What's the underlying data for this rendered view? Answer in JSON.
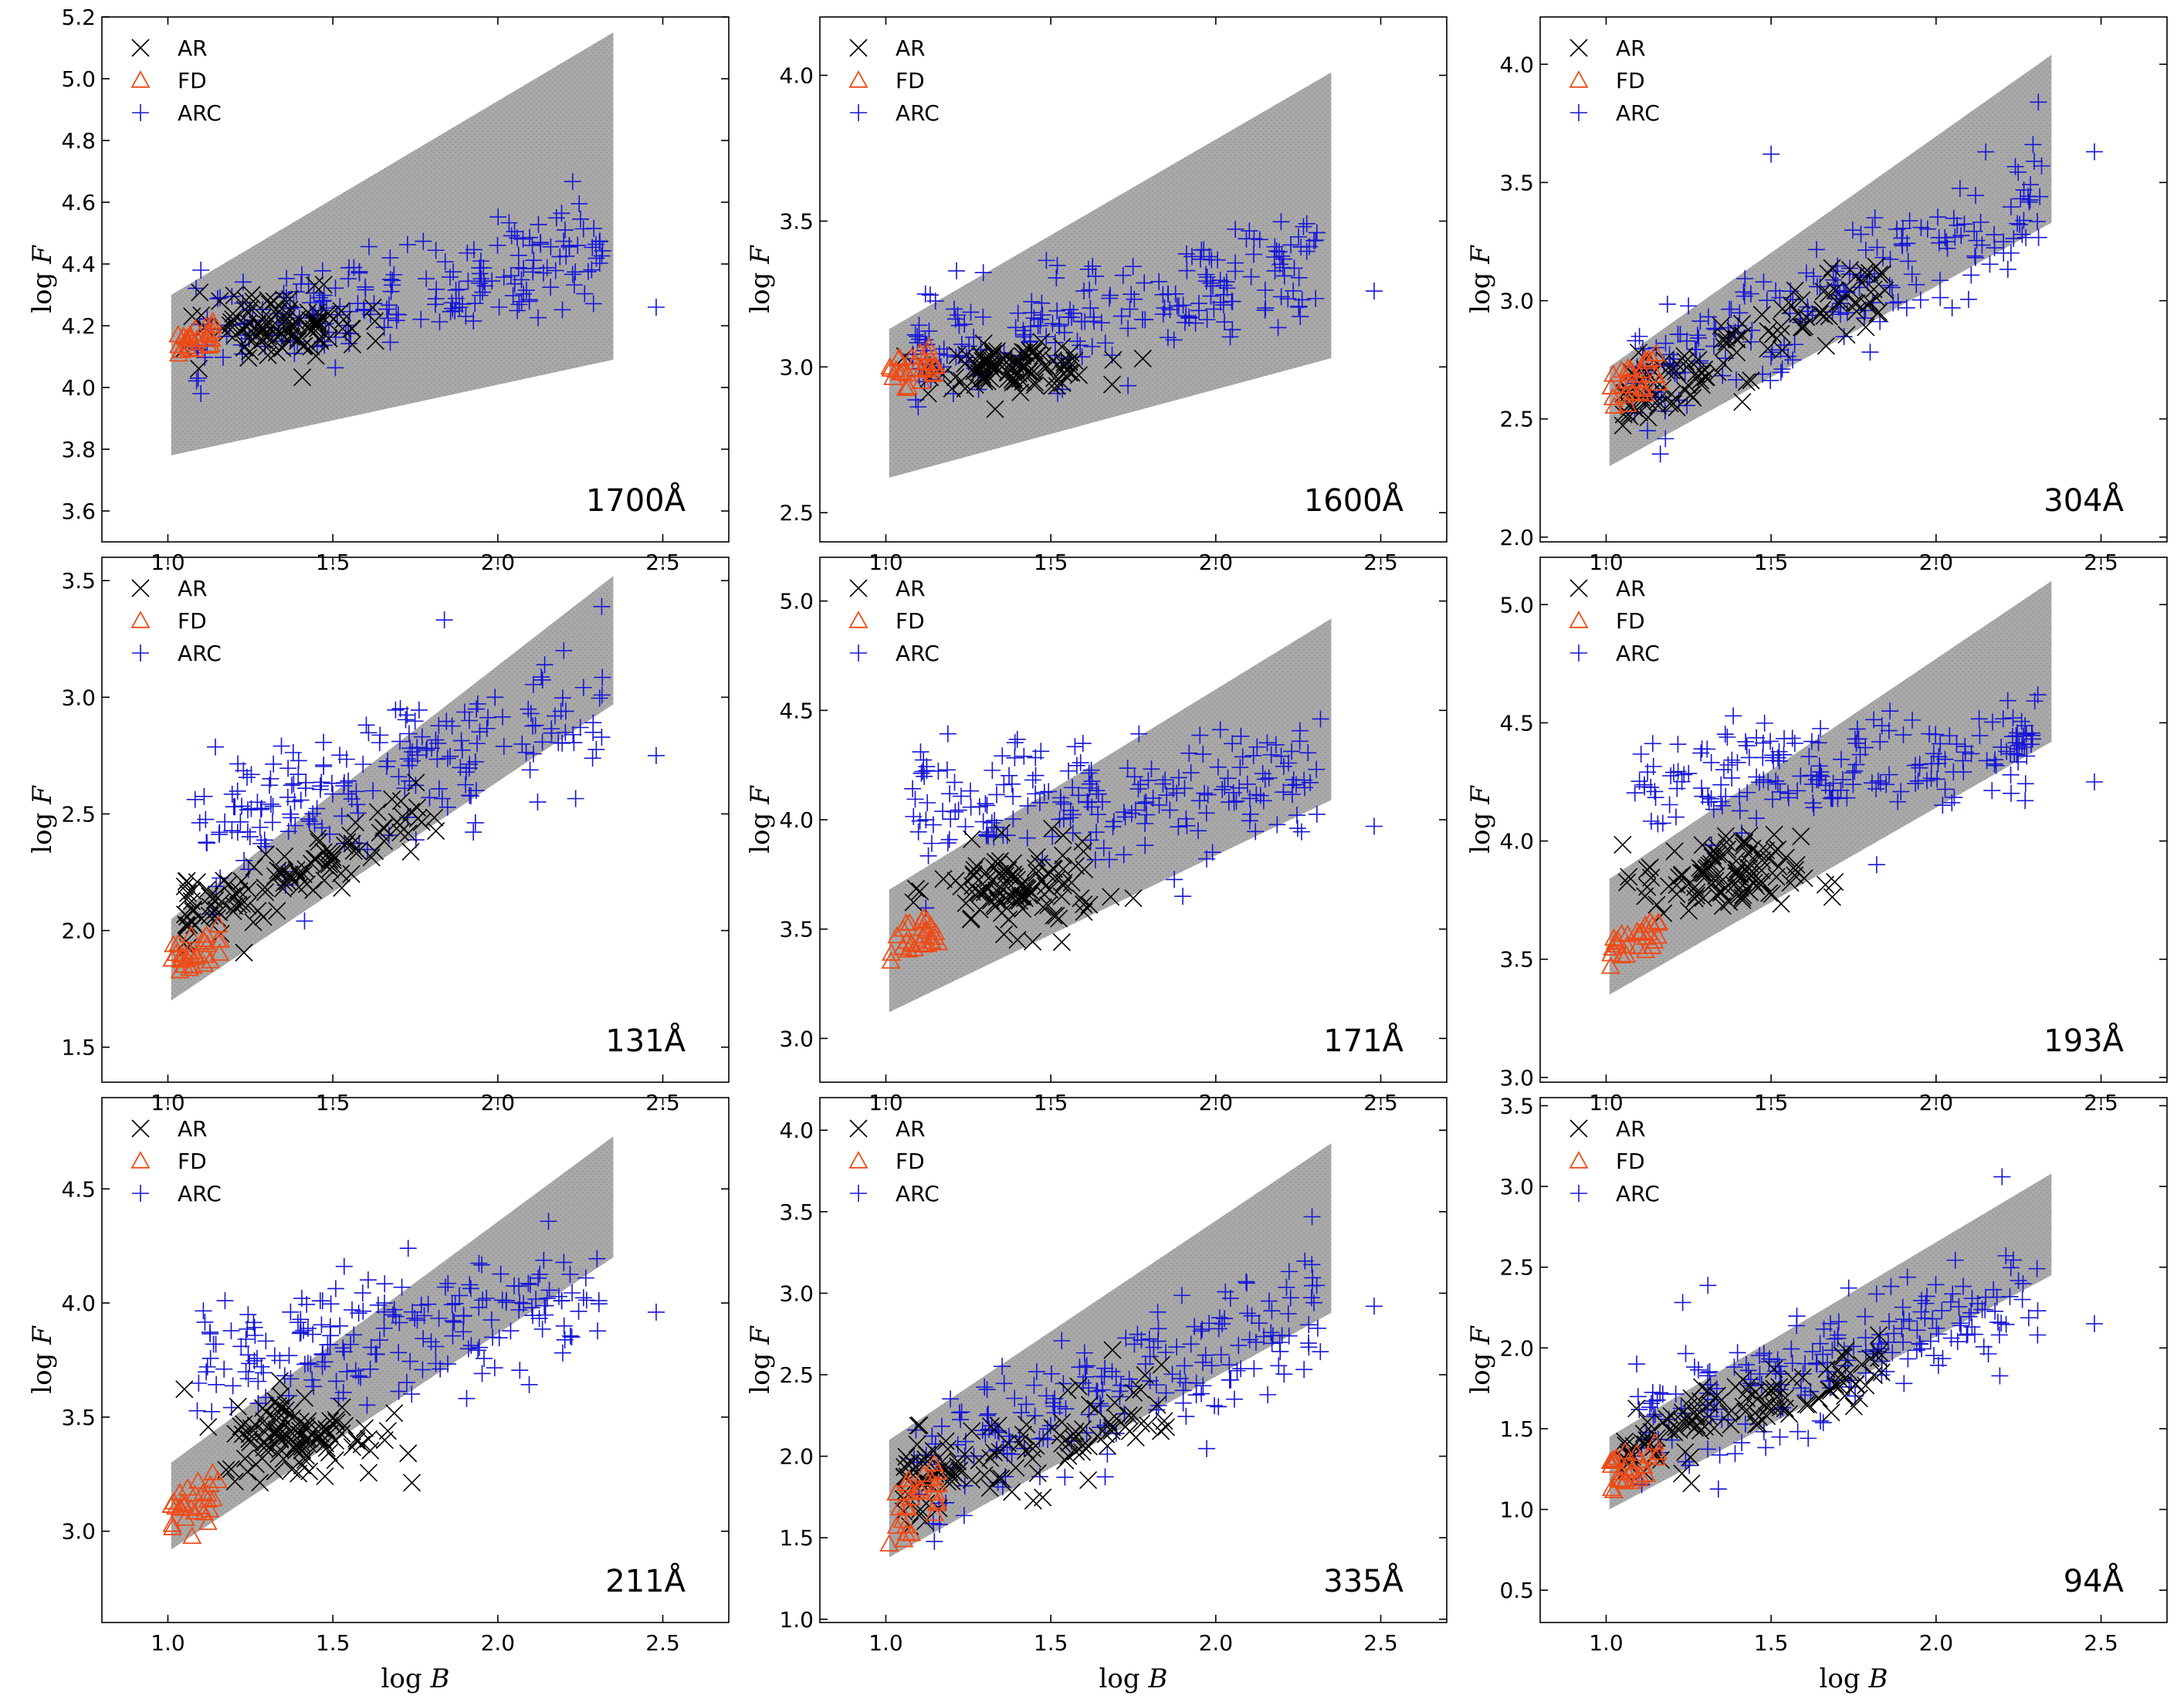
{
  "figure": {
    "axis_label_x_prefix": "log ",
    "axis_label_x_var": "B",
    "axis_label_y_prefix": "log ",
    "axis_label_y_var": "F"
  },
  "legend": [
    {
      "key": "AR",
      "label": "AR",
      "marker": "x",
      "color": "#000000"
    },
    {
      "key": "FD",
      "label": "FD",
      "marker": "triangle",
      "color": "#ee4a16"
    },
    {
      "key": "ARC",
      "label": "ARC",
      "marker": "plus",
      "color": "#1515d8"
    }
  ],
  "colors": {
    "band": "#a9a9a9",
    "axes": "#000000"
  },
  "chart_data": [
    {
      "type": "scatter",
      "title": "1700Å",
      "xlabel": "log B",
      "ylabel": "log F",
      "xlim": [
        0.8,
        2.7
      ],
      "ylim": [
        3.5,
        5.2
      ],
      "xticks": [
        "1.0",
        "1.5",
        "2.0",
        "2.5"
      ],
      "yticks": [
        "3.6",
        "3.8",
        "4.0",
        "4.2",
        "4.4",
        "4.6",
        "4.8",
        "5.0",
        "5.2"
      ],
      "band": {
        "x0": 1.01,
        "x1": 2.35,
        "lo": [
          3.78,
          4.09
        ],
        "hi": [
          4.3,
          5.15
        ]
      },
      "series": {
        "AR": {
          "center": [
            1.35,
            4.2
          ],
          "xrange": [
            1.05,
            1.85
          ],
          "spread": 0.04,
          "n": 110
        },
        "FD": {
          "xrange": [
            1.01,
            1.14
          ],
          "yrange": [
            4.09,
            4.22
          ],
          "n": 28
        },
        "ARC": {
          "slope": 0.25,
          "intercept": 3.88,
          "xrange": [
            1.08,
            2.32
          ],
          "spread": 0.08,
          "n": 210,
          "extra": [
            [
              2.48,
              4.26
            ],
            [
              1.1,
              4.38
            ],
            [
              1.1,
              3.98
            ]
          ]
        }
      }
    },
    {
      "type": "scatter",
      "title": "1600Å",
      "xlabel": "log B",
      "ylabel": "log F",
      "xlim": [
        0.8,
        2.7
      ],
      "ylim": [
        2.4,
        4.2
      ],
      "xticks": [
        "1.0",
        "1.5",
        "2.0",
        "2.5"
      ],
      "yticks": [
        "2.5",
        "3.0",
        "3.5",
        "4.0"
      ],
      "band": {
        "x0": 1.01,
        "x1": 2.35,
        "lo": [
          2.62,
          3.03
        ],
        "hi": [
          3.13,
          4.01
        ]
      },
      "series": {
        "AR": {
          "center": [
            1.4,
            3.0
          ],
          "xrange": [
            1.05,
            1.85
          ],
          "spread": 0.03,
          "n": 110
        },
        "FD": {
          "xrange": [
            1.01,
            1.16
          ],
          "yrange": [
            2.9,
            3.09
          ],
          "n": 28
        },
        "ARC": {
          "slope": 0.28,
          "intercept": 2.72,
          "xrange": [
            1.08,
            2.32
          ],
          "spread": 0.09,
          "n": 210,
          "extra": [
            [
              2.48,
              3.26
            ],
            [
              1.12,
              3.25
            ]
          ]
        }
      }
    },
    {
      "type": "scatter",
      "title": "304Å",
      "xlabel": "log B",
      "ylabel": "log F",
      "xlim": [
        0.8,
        2.7
      ],
      "ylim": [
        1.98,
        4.2
      ],
      "xticks": [
        "1.0",
        "1.5",
        "2.0",
        "2.5"
      ],
      "yticks": [
        "2.0",
        "2.5",
        "3.0",
        "3.5",
        "4.0"
      ],
      "band": {
        "x0": 1.01,
        "x1": 2.35,
        "lo": [
          2.3,
          3.33
        ],
        "hi": [
          2.72,
          4.04
        ]
      },
      "series": {
        "AR": {
          "slope": 0.65,
          "intercept": 1.88,
          "xrange": [
            1.05,
            1.85
          ],
          "spread": 0.08,
          "n": 120
        },
        "FD": {
          "xrange": [
            1.01,
            1.16
          ],
          "yrange": [
            2.52,
            2.8
          ],
          "n": 28
        },
        "ARC": {
          "slope": 0.6,
          "intercept": 2.0,
          "xrange": [
            1.08,
            2.32
          ],
          "spread": 0.14,
          "n": 200,
          "extra": [
            [
              2.48,
              3.63
            ],
            [
              2.31,
              3.84
            ],
            [
              1.5,
              3.62
            ]
          ]
        }
      }
    },
    {
      "type": "scatter",
      "title": "131Å",
      "xlabel": "log B",
      "ylabel": "log F",
      "xlim": [
        0.8,
        2.7
      ],
      "ylim": [
        1.35,
        3.6
      ],
      "xticks": [
        "1.0",
        "1.5",
        "2.0",
        "2.5"
      ],
      "yticks": [
        "1.5",
        "2.0",
        "2.5",
        "3.0",
        "3.5"
      ],
      "band": {
        "x0": 1.01,
        "x1": 2.35,
        "lo": [
          1.7,
          2.97
        ],
        "hi": [
          2.05,
          3.52
        ]
      },
      "series": {
        "AR": {
          "slope": 0.55,
          "intercept": 1.48,
          "xrange": [
            1.05,
            1.82
          ],
          "spread": 0.08,
          "n": 120
        },
        "FD": {
          "xrange": [
            1.01,
            1.16
          ],
          "yrange": [
            1.8,
            2.03
          ],
          "n": 28
        },
        "ARC": {
          "slope": 0.5,
          "intercept": 1.85,
          "xrange": [
            1.08,
            2.32
          ],
          "spread": 0.16,
          "n": 200,
          "extra": [
            [
              2.48,
              2.75
            ],
            [
              2.2,
              3.2
            ]
          ]
        }
      }
    },
    {
      "type": "scatter",
      "title": "171Å",
      "xlabel": "log B",
      "ylabel": "log F",
      "xlim": [
        0.8,
        2.7
      ],
      "ylim": [
        2.8,
        5.2
      ],
      "xticks": [
        "1.0",
        "1.5",
        "2.0",
        "2.5"
      ],
      "yticks": [
        "3.0",
        "3.5",
        "4.0",
        "4.5",
        "5.0"
      ],
      "band": {
        "x0": 1.01,
        "x1": 2.35,
        "lo": [
          3.12,
          4.09
        ],
        "hi": [
          3.68,
          4.92
        ]
      },
      "series": {
        "AR": {
          "center": [
            1.4,
            3.68
          ],
          "xrange": [
            1.05,
            1.75
          ],
          "spread": 0.08,
          "n": 110
        },
        "FD": {
          "xrange": [
            1.01,
            1.16
          ],
          "yrange": [
            3.35,
            3.58
          ],
          "n": 28
        },
        "ARC": {
          "slope": 0.1,
          "intercept": 3.95,
          "xrange": [
            1.08,
            2.32
          ],
          "spread": 0.14,
          "n": 200,
          "extra": [
            [
              2.48,
              3.97
            ],
            [
              1.9,
              3.65
            ]
          ]
        }
      }
    },
    {
      "type": "scatter",
      "title": "193Å",
      "xlabel": "log B",
      "ylabel": "log F",
      "xlim": [
        0.8,
        2.7
      ],
      "ylim": [
        2.98,
        5.2
      ],
      "xticks": [
        "1.0",
        "1.5",
        "2.0",
        "2.5"
      ],
      "yticks": [
        "3.0",
        "3.5",
        "4.0",
        "4.5",
        "5.0"
      ],
      "band": {
        "x0": 1.01,
        "x1": 2.35,
        "lo": [
          3.35,
          4.42
        ],
        "hi": [
          3.84,
          5.1
        ]
      },
      "series": {
        "AR": {
          "center": [
            1.35,
            3.85
          ],
          "xrange": [
            1.05,
            1.75
          ],
          "spread": 0.07,
          "n": 110
        },
        "FD": {
          "xrange": [
            1.01,
            1.16
          ],
          "yrange": [
            3.45,
            3.7
          ],
          "n": 28
        },
        "ARC": {
          "slope": 0.15,
          "intercept": 4.05,
          "xrange": [
            1.08,
            2.32
          ],
          "spread": 0.1,
          "n": 200,
          "extra": [
            [
              2.48,
              4.25
            ],
            [
              1.82,
              3.9
            ]
          ]
        }
      }
    },
    {
      "type": "scatter",
      "title": "211Å",
      "xlabel": "log B",
      "ylabel": "log F",
      "xlim": [
        0.8,
        2.7
      ],
      "ylim": [
        2.6,
        4.9
      ],
      "xticks": [
        "1.0",
        "1.5",
        "2.0",
        "2.5"
      ],
      "yticks": [
        "3.0",
        "3.5",
        "4.0",
        "4.5"
      ],
      "band": {
        "x0": 1.01,
        "x1": 2.35,
        "lo": [
          2.92,
          4.2
        ],
        "hi": [
          3.3,
          4.73
        ]
      },
      "series": {
        "AR": {
          "center": [
            1.4,
            3.42
          ],
          "xrange": [
            1.05,
            1.85
          ],
          "spread": 0.08,
          "n": 115
        },
        "FD": {
          "xrange": [
            1.01,
            1.16
          ],
          "yrange": [
            2.92,
            3.28
          ],
          "n": 28
        },
        "ARC": {
          "slope": 0.25,
          "intercept": 3.45,
          "xrange": [
            1.08,
            2.32
          ],
          "spread": 0.13,
          "n": 200,
          "extra": [
            [
              2.48,
              3.96
            ],
            [
              1.12,
              3.72
            ]
          ]
        }
      }
    },
    {
      "type": "scatter",
      "title": "335Å",
      "xlabel": "log B",
      "ylabel": "log F",
      "xlim": [
        0.8,
        2.7
      ],
      "ylim": [
        0.98,
        4.2
      ],
      "xticks": [
        "1.0",
        "1.5",
        "2.0",
        "2.5"
      ],
      "yticks": [
        "1.0",
        "1.5",
        "2.0",
        "2.5",
        "3.0",
        "3.5",
        "4.0"
      ],
      "band": {
        "x0": 1.01,
        "x1": 2.35,
        "lo": [
          1.38,
          2.88
        ],
        "hi": [
          2.1,
          3.92
        ]
      },
      "series": {
        "AR": {
          "slope": 0.6,
          "intercept": 1.18,
          "xrange": [
            1.05,
            1.85
          ],
          "spread": 0.12,
          "n": 120
        },
        "FD": {
          "xrange": [
            1.01,
            1.16
          ],
          "yrange": [
            1.42,
            1.98
          ],
          "n": 28
        },
        "ARC": {
          "slope": 0.75,
          "intercept": 1.15,
          "xrange": [
            1.08,
            2.32
          ],
          "spread": 0.22,
          "n": 200,
          "extra": [
            [
              2.48,
              2.92
            ]
          ]
        }
      }
    },
    {
      "type": "scatter",
      "title": "94Å",
      "xlabel": "log B",
      "ylabel": "log F",
      "xlim": [
        0.8,
        2.7
      ],
      "ylim": [
        0.3,
        3.55
      ],
      "xticks": [
        "1.0",
        "1.5",
        "2.0",
        "2.5"
      ],
      "yticks": [
        "0.5",
        "1.0",
        "1.5",
        "2.0",
        "2.5",
        "3.0",
        "3.5"
      ],
      "band": {
        "x0": 1.01,
        "x1": 2.35,
        "lo": [
          1.0,
          2.45
        ],
        "hi": [
          1.45,
          3.08
        ]
      },
      "series": {
        "AR": {
          "slope": 0.7,
          "intercept": 0.62,
          "xrange": [
            1.05,
            1.85
          ],
          "spread": 0.1,
          "n": 120
        },
        "FD": {
          "xrange": [
            1.01,
            1.16
          ],
          "yrange": [
            1.1,
            1.45
          ],
          "n": 28
        },
        "ARC": {
          "slope": 0.65,
          "intercept": 0.82,
          "xrange": [
            1.08,
            2.32
          ],
          "spread": 0.2,
          "n": 200,
          "extra": [
            [
              2.48,
              2.15
            ],
            [
              2.2,
              3.06
            ]
          ]
        }
      }
    }
  ]
}
